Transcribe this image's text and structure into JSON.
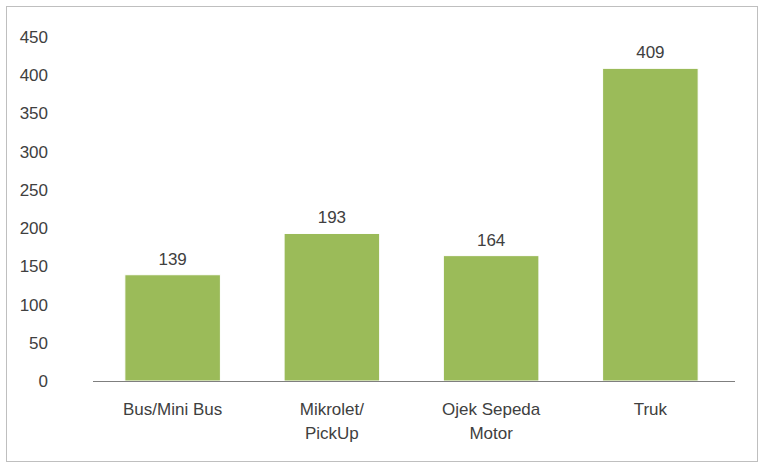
{
  "chart_data": {
    "type": "bar",
    "categories": [
      "Bus/Mini Bus",
      "Mikrolet/ PickUp",
      "Ojek Sepeda Motor",
      "Truk"
    ],
    "values": [
      139,
      193,
      164,
      409
    ],
    "color": "#9bbb59",
    "ylim": [
      0,
      450
    ],
    "yticks": [
      0,
      50,
      100,
      150,
      200,
      250,
      300,
      350,
      400,
      450
    ],
    "grid": false,
    "data_labels": true
  }
}
